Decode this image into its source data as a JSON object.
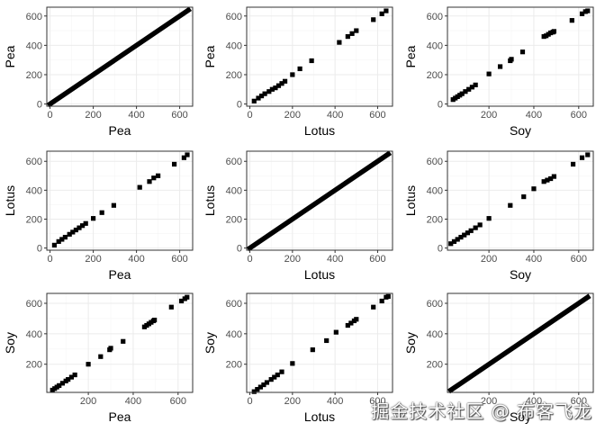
{
  "colors": {
    "panel_border": "#333333",
    "grid_major": "#ebebeb",
    "grid_minor": "#f5f5f5",
    "point": "#000000",
    "tick_label": "#4d4d4d",
    "axis_title": "#000000"
  },
  "watermark": "掘金技术社区 @ 布客飞龙",
  "chart_data": [
    {
      "type": "scatter",
      "xlabel": "Pea",
      "ylabel": "Pea",
      "xlim": [
        -15,
        660
      ],
      "ylim": [
        -15,
        660
      ],
      "xticks": [
        0,
        200,
        400,
        600
      ],
      "yticks": [
        0,
        200,
        400,
        600
      ],
      "grid": true,
      "dense_identity": true,
      "points": [
        [
          0,
          0
        ],
        [
          640,
          640
        ]
      ]
    },
    {
      "type": "scatter",
      "xlabel": "Lotus",
      "ylabel": "Pea",
      "xlim": [
        -15,
        670
      ],
      "ylim": [
        -15,
        660
      ],
      "xticks": [
        0,
        200,
        400,
        600
      ],
      "yticks": [
        0,
        200,
        400,
        600
      ],
      "grid": true,
      "dense_identity": false,
      "points": [
        [
          20,
          20
        ],
        [
          40,
          40
        ],
        [
          55,
          55
        ],
        [
          70,
          70
        ],
        [
          90,
          85
        ],
        [
          105,
          100
        ],
        [
          120,
          110
        ],
        [
          135,
          125
        ],
        [
          150,
          140
        ],
        [
          165,
          155
        ],
        [
          200,
          200
        ],
        [
          235,
          240
        ],
        [
          290,
          295
        ],
        [
          420,
          420
        ],
        [
          460,
          460
        ],
        [
          480,
          480
        ],
        [
          500,
          500
        ],
        [
          580,
          575
        ],
        [
          620,
          615
        ],
        [
          640,
          635
        ]
      ]
    },
    {
      "type": "scatter",
      "xlabel": "Soy",
      "ylabel": "Pea",
      "xlim": [
        15,
        665
      ],
      "ylim": [
        -15,
        660
      ],
      "xticks": [
        200,
        400,
        600
      ],
      "yticks": [
        0,
        200,
        400,
        600
      ],
      "grid": true,
      "dense_identity": false,
      "points": [
        [
          40,
          30
        ],
        [
          50,
          40
        ],
        [
          60,
          50
        ],
        [
          70,
          60
        ],
        [
          80,
          70
        ],
        [
          95,
          85
        ],
        [
          110,
          100
        ],
        [
          125,
          115
        ],
        [
          140,
          130
        ],
        [
          200,
          205
        ],
        [
          250,
          255
        ],
        [
          295,
          295
        ],
        [
          300,
          305
        ],
        [
          350,
          355
        ],
        [
          445,
          460
        ],
        [
          455,
          465
        ],
        [
          465,
          475
        ],
        [
          475,
          485
        ],
        [
          485,
          490
        ],
        [
          490,
          495
        ],
        [
          570,
          570
        ],
        [
          615,
          615
        ],
        [
          630,
          630
        ],
        [
          640,
          635
        ]
      ]
    },
    {
      "type": "scatter",
      "xlabel": "Pea",
      "ylabel": "Lotus",
      "xlim": [
        -15,
        660
      ],
      "ylim": [
        -15,
        670
      ],
      "xticks": [
        0,
        200,
        400,
        600
      ],
      "yticks": [
        0,
        200,
        400,
        600
      ],
      "grid": true,
      "dense_identity": false,
      "points": [
        [
          20,
          20
        ],
        [
          40,
          45
        ],
        [
          55,
          60
        ],
        [
          70,
          75
        ],
        [
          90,
          95
        ],
        [
          105,
          110
        ],
        [
          120,
          125
        ],
        [
          135,
          140
        ],
        [
          150,
          155
        ],
        [
          165,
          170
        ],
        [
          200,
          205
        ],
        [
          240,
          245
        ],
        [
          295,
          295
        ],
        [
          415,
          420
        ],
        [
          460,
          460
        ],
        [
          480,
          485
        ],
        [
          500,
          500
        ],
        [
          575,
          580
        ],
        [
          620,
          625
        ],
        [
          635,
          645
        ]
      ]
    },
    {
      "type": "scatter",
      "xlabel": "Lotus",
      "ylabel": "Lotus",
      "xlim": [
        -15,
        670
      ],
      "ylim": [
        -15,
        670
      ],
      "xticks": [
        0,
        200,
        400,
        600
      ],
      "yticks": [
        0,
        200,
        400,
        600
      ],
      "grid": true,
      "dense_identity": true,
      "points": [
        [
          0,
          0
        ],
        [
          650,
          650
        ]
      ]
    },
    {
      "type": "scatter",
      "xlabel": "Soy",
      "ylabel": "Lotus",
      "xlim": [
        15,
        665
      ],
      "ylim": [
        -15,
        670
      ],
      "xticks": [
        200,
        400,
        600
      ],
      "yticks": [
        0,
        200,
        400,
        600
      ],
      "grid": true,
      "dense_identity": false,
      "points": [
        [
          30,
          30
        ],
        [
          45,
          45
        ],
        [
          60,
          60
        ],
        [
          75,
          75
        ],
        [
          90,
          90
        ],
        [
          105,
          105
        ],
        [
          120,
          120
        ],
        [
          140,
          140
        ],
        [
          160,
          160
        ],
        [
          200,
          205
        ],
        [
          295,
          295
        ],
        [
          355,
          355
        ],
        [
          400,
          410
        ],
        [
          445,
          460
        ],
        [
          460,
          470
        ],
        [
          475,
          480
        ],
        [
          490,
          495
        ],
        [
          575,
          580
        ],
        [
          615,
          625
        ],
        [
          640,
          645
        ]
      ]
    },
    {
      "type": "scatter",
      "xlabel": "Pea",
      "ylabel": "Soy",
      "xlim": [
        15,
        665
      ],
      "ylim": [
        15,
        665
      ],
      "xticks": [
        200,
        400,
        600
      ],
      "yticks": [
        200,
        400,
        600
      ],
      "grid": true,
      "dense_identity": false,
      "points": [
        [
          40,
          30
        ],
        [
          50,
          40
        ],
        [
          60,
          50
        ],
        [
          70,
          60
        ],
        [
          85,
          75
        ],
        [
          100,
          90
        ],
        [
          110,
          100
        ],
        [
          125,
          115
        ],
        [
          140,
          130
        ],
        [
          200,
          200
        ],
        [
          255,
          250
        ],
        [
          295,
          295
        ],
        [
          300,
          305
        ],
        [
          355,
          350
        ],
        [
          450,
          445
        ],
        [
          460,
          455
        ],
        [
          470,
          465
        ],
        [
          480,
          475
        ],
        [
          490,
          485
        ],
        [
          495,
          490
        ],
        [
          570,
          575
        ],
        [
          615,
          615
        ],
        [
          630,
          630
        ],
        [
          640,
          640
        ]
      ]
    },
    {
      "type": "scatter",
      "xlabel": "Lotus",
      "ylabel": "Soy",
      "xlim": [
        -15,
        670
      ],
      "ylim": [
        15,
        665
      ],
      "xticks": [
        0,
        200,
        400,
        600
      ],
      "yticks": [
        200,
        400,
        600
      ],
      "grid": true,
      "dense_identity": false,
      "points": [
        [
          20,
          20
        ],
        [
          35,
          35
        ],
        [
          50,
          50
        ],
        [
          65,
          65
        ],
        [
          80,
          80
        ],
        [
          100,
          100
        ],
        [
          115,
          115
        ],
        [
          130,
          130
        ],
        [
          150,
          150
        ],
        [
          200,
          205
        ],
        [
          295,
          295
        ],
        [
          360,
          355
        ],
        [
          405,
          410
        ],
        [
          460,
          455
        ],
        [
          475,
          470
        ],
        [
          490,
          485
        ],
        [
          500,
          495
        ],
        [
          580,
          575
        ],
        [
          620,
          615
        ],
        [
          640,
          640
        ],
        [
          650,
          645
        ]
      ]
    },
    {
      "type": "scatter",
      "xlabel": "Soy",
      "ylabel": "Soy",
      "xlim": [
        15,
        665
      ],
      "ylim": [
        15,
        665
      ],
      "xticks": [
        200,
        400,
        600
      ],
      "yticks": [
        200,
        400,
        600
      ],
      "grid": true,
      "dense_identity": true,
      "points": [
        [
          30,
          30
        ],
        [
          640,
          640
        ]
      ]
    }
  ]
}
